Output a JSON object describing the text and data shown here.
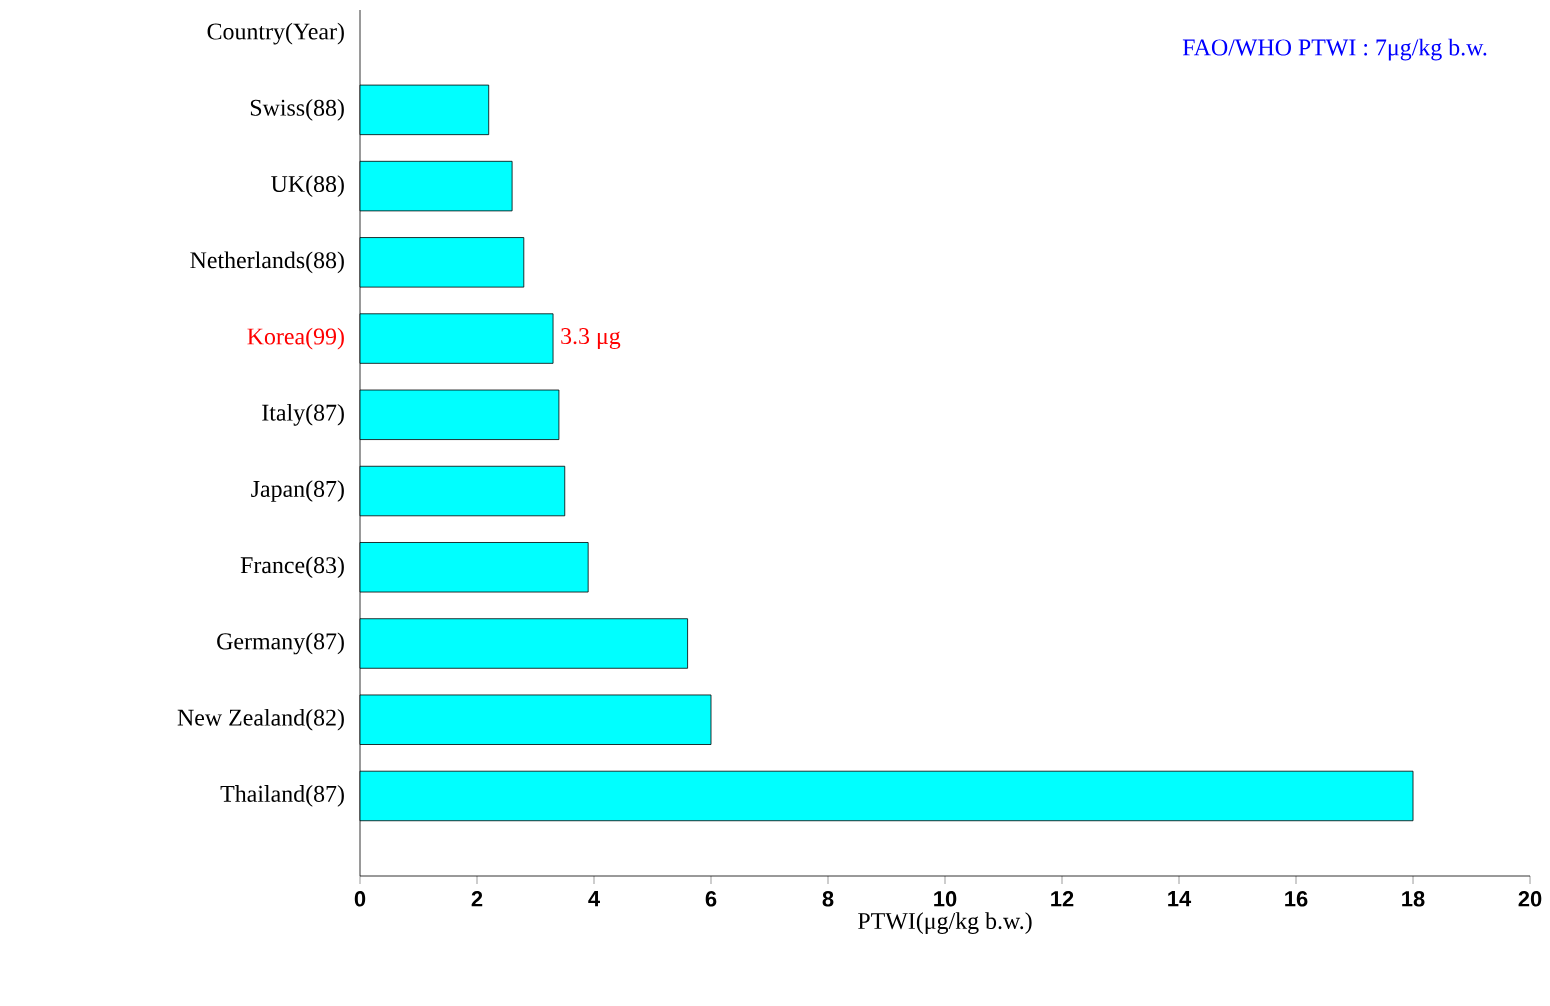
{
  "chart_data": {
    "type": "bar",
    "orientation": "horizontal",
    "ylabel": "Country(Year)",
    "xlabel": "PTWI(μg/kg b.w.)",
    "categories": [
      "Swiss(88)",
      "UK(88)",
      "Netherlands(88)",
      "Korea(99)",
      "Italy(87)",
      "Japan(87)",
      "France(83)",
      "Germany(87)",
      "New Zealand(82)",
      "Thailand(87)"
    ],
    "values": [
      2.2,
      2.6,
      2.8,
      3.3,
      3.4,
      3.5,
      3.9,
      5.6,
      6.0,
      18.0
    ],
    "value_labels": [
      null,
      null,
      null,
      "3.3 μg",
      null,
      null,
      null,
      null,
      null,
      null
    ],
    "color": "#00ffff",
    "xlim": [
      0,
      20
    ],
    "xticks": [
      0,
      2,
      4,
      6,
      8,
      10,
      12,
      14,
      16,
      18,
      20
    ],
    "annotations": [
      "FAO/WHO PTWI : 7μg/kg b.w."
    ],
    "grid": false
  }
}
